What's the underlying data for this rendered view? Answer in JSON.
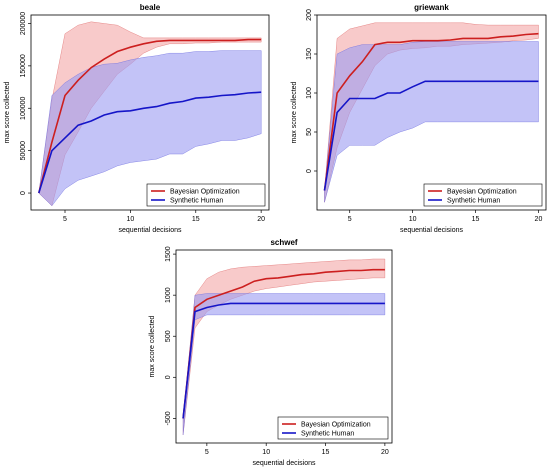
{
  "colors": {
    "bo_line": "#cc1f1f",
    "bo_band": "#f4a6a6",
    "human_line": "#1515c8",
    "human_band": "#9b9bf2"
  },
  "chart_data": [
    {
      "type": "line",
      "title": "beale",
      "xlabel": "sequential decisions",
      "ylabel": "max score collected",
      "xlim": [
        2.4,
        20.6
      ],
      "ylim": [
        -20000,
        210000
      ],
      "xticks": [
        5,
        10,
        15,
        20
      ],
      "yticks": [
        0,
        50000,
        100000,
        150000,
        200000
      ],
      "ytick_labels": [
        "0",
        "50000",
        "100000",
        "150000",
        "200000"
      ],
      "legend_position": "bottom-right",
      "x": [
        3,
        4,
        5,
        6,
        7,
        8,
        9,
        10,
        11,
        12,
        13,
        14,
        15,
        16,
        17,
        18,
        19,
        20
      ],
      "series": [
        {
          "name": "Bayesian Optimization",
          "values": [
            0,
            60000,
            115000,
            133000,
            148000,
            158000,
            167000,
            172000,
            176000,
            179000,
            180000,
            180000,
            180000,
            180000,
            180000,
            180000,
            181000,
            181000
          ],
          "upper": [
            0,
            110000,
            188000,
            198000,
            202000,
            200000,
            198000,
            190000,
            183000,
            183000,
            183000,
            183000,
            183000,
            183000,
            183000,
            183000,
            183000,
            183000
          ],
          "lower": [
            0,
            -15000,
            45000,
            72000,
            100000,
            120000,
            140000,
            152000,
            165000,
            172000,
            176000,
            176000,
            177000,
            177000,
            178000,
            178000,
            178000,
            178000
          ]
        },
        {
          "name": "Synthetic Human",
          "values": [
            0,
            50000,
            65000,
            80000,
            85000,
            92000,
            96000,
            97000,
            100000,
            102000,
            106000,
            108000,
            112000,
            113000,
            115000,
            116000,
            118000,
            119000
          ],
          "upper": [
            0,
            115000,
            130000,
            140000,
            148000,
            152000,
            153000,
            157000,
            160000,
            162000,
            165000,
            165000,
            167000,
            167000,
            168000,
            168000,
            168000,
            168000
          ],
          "lower": [
            0,
            -15000,
            5000,
            15000,
            20000,
            25000,
            32000,
            36000,
            38000,
            40000,
            46000,
            46000,
            55000,
            58000,
            62000,
            62000,
            65000,
            70000
          ]
        }
      ]
    },
    {
      "type": "line",
      "title": "griewank",
      "xlabel": "sequential decisions",
      "ylabel": "max score collected",
      "xlim": [
        2.4,
        20.6
      ],
      "ylim": [
        -50,
        200
      ],
      "xticks": [
        5,
        10,
        15,
        20
      ],
      "yticks": [
        0,
        50,
        100,
        150,
        200
      ],
      "ytick_labels": [
        "0",
        "50",
        "100",
        "150",
        "200"
      ],
      "legend_position": "bottom-right",
      "x": [
        3,
        4,
        5,
        6,
        7,
        8,
        9,
        10,
        11,
        12,
        13,
        14,
        15,
        16,
        17,
        18,
        19,
        20
      ],
      "series": [
        {
          "name": "Bayesian Optimization",
          "values": [
            -25,
            100,
            122,
            140,
            162,
            165,
            165,
            167,
            167,
            167,
            168,
            170,
            170,
            170,
            172,
            173,
            175,
            176
          ],
          "upper": [
            -25,
            170,
            182,
            186,
            190,
            190,
            190,
            190,
            190,
            190,
            190,
            190,
            188,
            187,
            187,
            187,
            187,
            187
          ],
          "lower": [
            -40,
            30,
            75,
            105,
            135,
            150,
            155,
            157,
            158,
            160,
            160,
            162,
            163,
            164,
            165,
            167,
            168,
            170
          ]
        },
        {
          "name": "Synthetic Human",
          "values": [
            -25,
            75,
            93,
            93,
            93,
            100,
            100,
            108,
            115,
            115,
            115,
            115,
            115,
            115,
            115,
            115,
            115,
            115
          ],
          "upper": [
            -25,
            150,
            158,
            162,
            162,
            162,
            162,
            165,
            166,
            166,
            166,
            166,
            166,
            166,
            166,
            166,
            166,
            166
          ],
          "lower": [
            -40,
            20,
            33,
            33,
            33,
            43,
            50,
            55,
            63,
            63,
            63,
            63,
            63,
            63,
            63,
            63,
            63,
            63
          ]
        }
      ]
    },
    {
      "type": "line",
      "title": "schwef",
      "xlabel": "sequential decisions",
      "ylabel": "max score collected",
      "xlim": [
        2.4,
        20.6
      ],
      "ylim": [
        -800,
        1550
      ],
      "xticks": [
        5,
        10,
        15,
        20
      ],
      "yticks": [
        -500,
        0,
        500,
        1000,
        1500
      ],
      "ytick_labels": [
        "-500",
        "0",
        "500",
        "1000",
        "1500"
      ],
      "legend_position": "bottom-right",
      "x": [
        3,
        4,
        5,
        6,
        7,
        8,
        9,
        10,
        11,
        12,
        13,
        14,
        15,
        16,
        17,
        18,
        19,
        20
      ],
      "series": [
        {
          "name": "Bayesian Optimization",
          "values": [
            -500,
            850,
            950,
            1000,
            1050,
            1100,
            1170,
            1200,
            1210,
            1230,
            1250,
            1260,
            1280,
            1290,
            1300,
            1300,
            1310,
            1310
          ],
          "upper": [
            -500,
            1000,
            1200,
            1280,
            1320,
            1340,
            1350,
            1360,
            1370,
            1380,
            1390,
            1400,
            1410,
            1420,
            1430,
            1430,
            1440,
            1440
          ],
          "lower": [
            -700,
            600,
            800,
            880,
            950,
            1000,
            1050,
            1080,
            1100,
            1120,
            1140,
            1160,
            1170,
            1180,
            1190,
            1200,
            1210,
            1210
          ]
        },
        {
          "name": "Synthetic Human",
          "values": [
            -500,
            800,
            850,
            880,
            900,
            900,
            900,
            900,
            900,
            900,
            900,
            900,
            900,
            900,
            900,
            900,
            900,
            900
          ],
          "upper": [
            -500,
            1000,
            1020,
            1020,
            1020,
            1020,
            1020,
            1020,
            1020,
            1020,
            1020,
            1020,
            1020,
            1020,
            1020,
            1020,
            1020,
            1020
          ],
          "lower": [
            -700,
            700,
            760,
            760,
            760,
            760,
            760,
            760,
            760,
            760,
            760,
            760,
            760,
            760,
            760,
            760,
            760,
            760
          ]
        }
      ]
    }
  ]
}
